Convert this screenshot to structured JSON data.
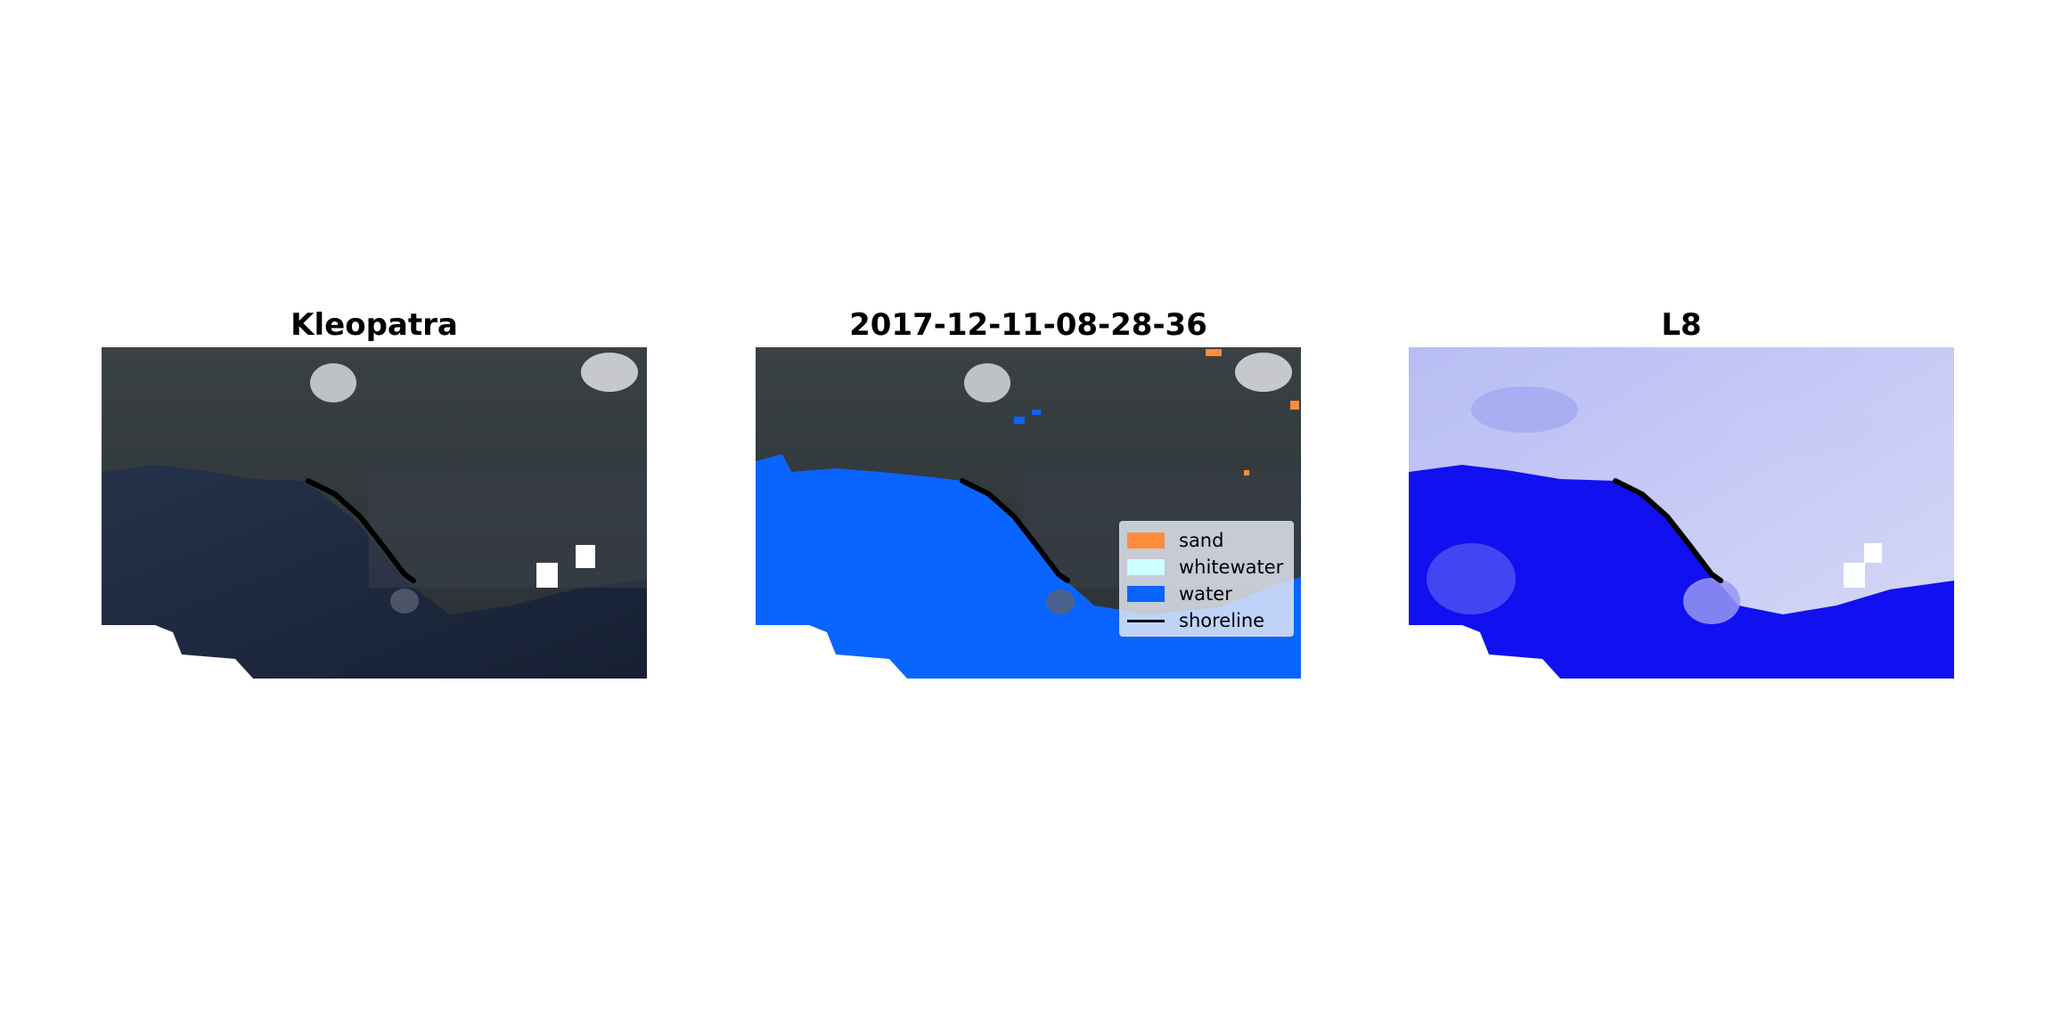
{
  "panels": [
    {
      "title": "Kleopatra"
    },
    {
      "title": "2017-12-11-08-28-36"
    },
    {
      "title": "L8"
    }
  ],
  "legend": {
    "items": [
      {
        "label": "sand",
        "color": "#ff8c3c"
      },
      {
        "label": "whitewater",
        "color": "#ccffff"
      },
      {
        "label": "water",
        "color": "#0a64ff"
      },
      {
        "label": "shoreline",
        "color": "#000000"
      }
    ]
  },
  "colors": {
    "land_dark": "#2b3236",
    "sea_dark": "#1b2434",
    "water_class": "#0a64ff",
    "mndwi_water": "#1010f0",
    "mndwi_land": "#c8ccf6",
    "cloud_mask": "#ffffff",
    "shoreline": "#000000"
  }
}
